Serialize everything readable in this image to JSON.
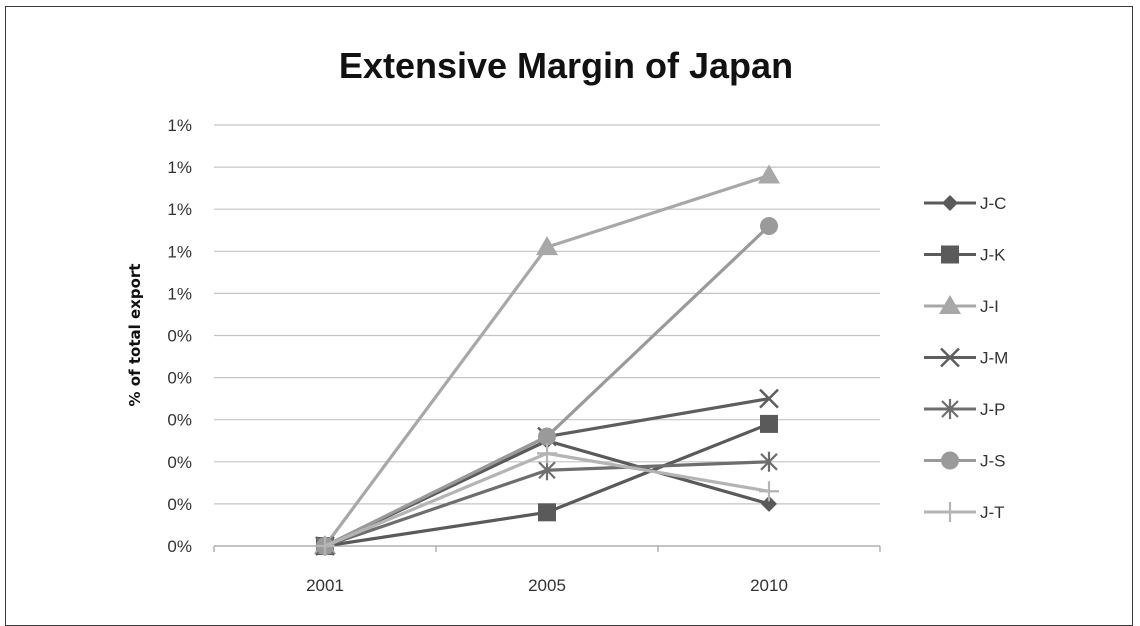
{
  "chart_data": {
    "type": "line",
    "title": "Extensive Margin of Japan",
    "xlabel": "",
    "ylabel": "% of total export",
    "categories": [
      "2001",
      "2005",
      "2010"
    ],
    "y_tick_labels": [
      "0%",
      "0%",
      "0%",
      "0%",
      "0%",
      "0%",
      "1%",
      "1%",
      "1%",
      "1%",
      "1%"
    ],
    "ylim": [
      0,
      1.0
    ],
    "grid": true,
    "legend_position": "right",
    "series": [
      {
        "name": "J-C",
        "marker": "diamond",
        "color": "#5a5a5a",
        "values": [
          0,
          0.25,
          0.1
        ]
      },
      {
        "name": "J-K",
        "marker": "square",
        "color": "#5a5a5a",
        "values": [
          0,
          0.08,
          0.29
        ]
      },
      {
        "name": "J-I",
        "marker": "triangle",
        "color": "#a8a8a8",
        "values": [
          0,
          0.71,
          0.88
        ]
      },
      {
        "name": "J-M",
        "marker": "x",
        "color": "#5e5e5e",
        "values": [
          0,
          0.26,
          0.35
        ]
      },
      {
        "name": "J-P",
        "marker": "star",
        "color": "#6e6e6e",
        "values": [
          0,
          0.18,
          0.2
        ]
      },
      {
        "name": "J-S",
        "marker": "circle",
        "color": "#9a9a9a",
        "values": [
          0,
          0.26,
          0.76
        ]
      },
      {
        "name": "J-T",
        "marker": "plus",
        "color": "#b4b4b4",
        "values": [
          0,
          0.22,
          0.13
        ]
      }
    ]
  }
}
